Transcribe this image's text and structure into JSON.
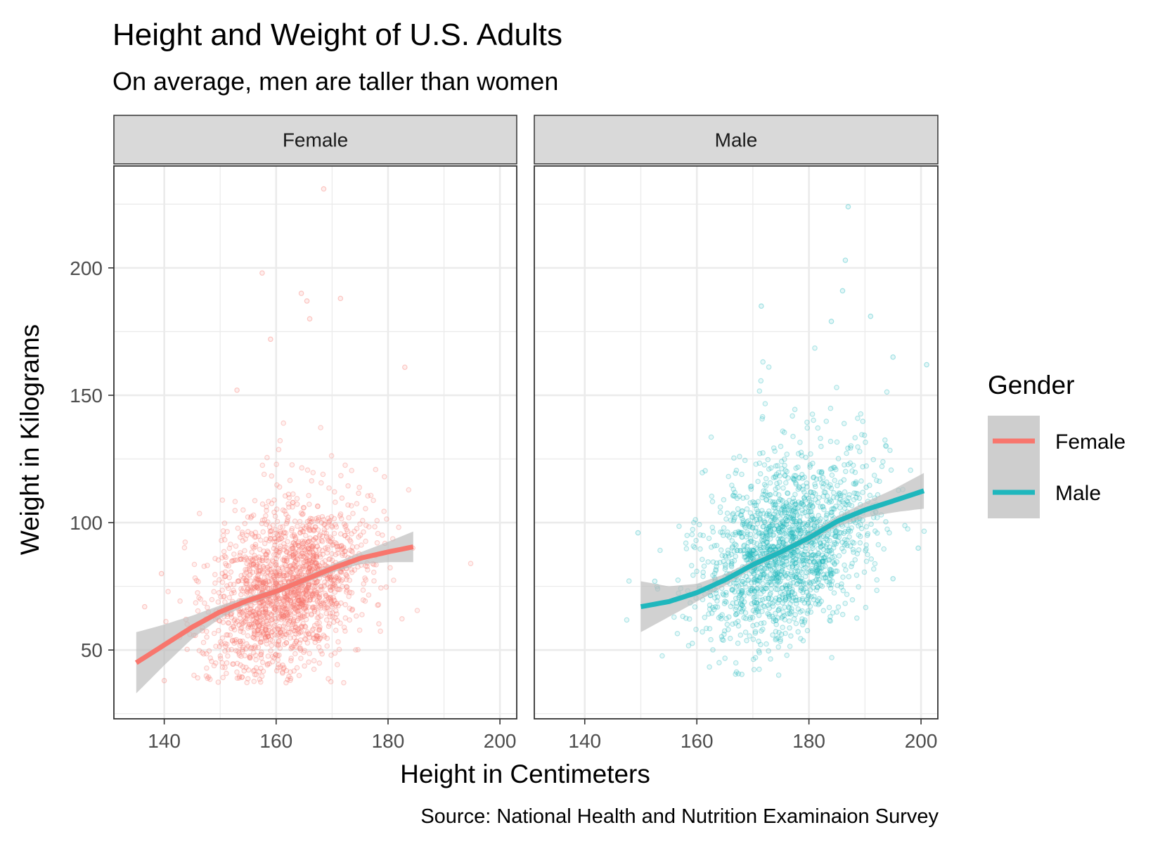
{
  "colors": {
    "female": "#F8766D",
    "male": "#1FB7BD",
    "strip_bg": "#D9D9D9",
    "grid": "#EBEBEB",
    "band": "#BEBEBE"
  },
  "chart_data": {
    "type": "scatter",
    "title": "Height and Weight of U.S. Adults",
    "subtitle": "On average, men are taller than women",
    "xlabel": "Height in Centimeters",
    "ylabel": "Weight in Kilograms",
    "caption": "Source: National Health and Nutrition Examinaion Survey",
    "xlim": [
      131,
      203
    ],
    "ylim": [
      23,
      240
    ],
    "xticks": [
      140,
      160,
      180,
      200
    ],
    "yticks": [
      50,
      100,
      150,
      200
    ],
    "grid": true,
    "legend": {
      "title": "Gender",
      "position": "right",
      "entries": [
        "Female",
        "Male"
      ]
    },
    "panels": [
      {
        "name": "Female",
        "color_key": "female",
        "points": {
          "n": 1800,
          "x_mean": 161.5,
          "x_sd": 7.0,
          "y_mean": 73,
          "y_sd": 18
        },
        "outliers": [
          [
            168.5,
            231
          ],
          [
            157.5,
            198
          ],
          [
            165.5,
            187
          ],
          [
            164.5,
            190
          ],
          [
            171.5,
            188
          ],
          [
            166,
            180
          ],
          [
            159,
            172
          ],
          [
            183,
            161
          ],
          [
            153,
            152
          ],
          [
            136.5,
            67
          ],
          [
            139.5,
            80
          ],
          [
            140,
            38
          ]
        ],
        "smooth": {
          "x": [
            135,
            140,
            145,
            150,
            155,
            160,
            165,
            170,
            175,
            180,
            184.5
          ],
          "y": [
            45,
            52,
            59,
            65,
            69.5,
            73,
            77.5,
            82,
            86,
            88.5,
            90.5
          ],
          "band_halfwidth": [
            12,
            8,
            4.5,
            2.5,
            1.5,
            1.2,
            1.3,
            1.6,
            2.3,
            4,
            6
          ]
        }
      },
      {
        "name": "Male",
        "color_key": "male",
        "points": {
          "n": 1700,
          "x_mean": 176,
          "x_sd": 7.5,
          "y_mean": 88,
          "y_sd": 19
        },
        "outliers": [
          [
            187,
            224
          ],
          [
            186.5,
            203
          ],
          [
            186,
            191
          ],
          [
            171.5,
            185
          ],
          [
            184,
            179
          ],
          [
            191,
            181
          ],
          [
            195,
            165
          ],
          [
            201,
            162
          ],
          [
            149.5,
            96
          ],
          [
            152.5,
            77
          ],
          [
            153,
            74
          ],
          [
            199.5,
            90
          ],
          [
            195,
            78
          ],
          [
            168,
            70
          ]
        ],
        "smooth": {
          "x": [
            150,
            155,
            160,
            165,
            170,
            175,
            180,
            185,
            190,
            195,
            200.5
          ],
          "y": [
            67,
            69,
            72.5,
            77.5,
            83.5,
            88.5,
            94,
            100.5,
            105,
            108.5,
            112.5
          ],
          "band_halfwidth": [
            10,
            6,
            3.5,
            2.3,
            1.6,
            1.3,
            1.5,
            2,
            3,
            4.5,
            7
          ]
        }
      }
    ]
  }
}
